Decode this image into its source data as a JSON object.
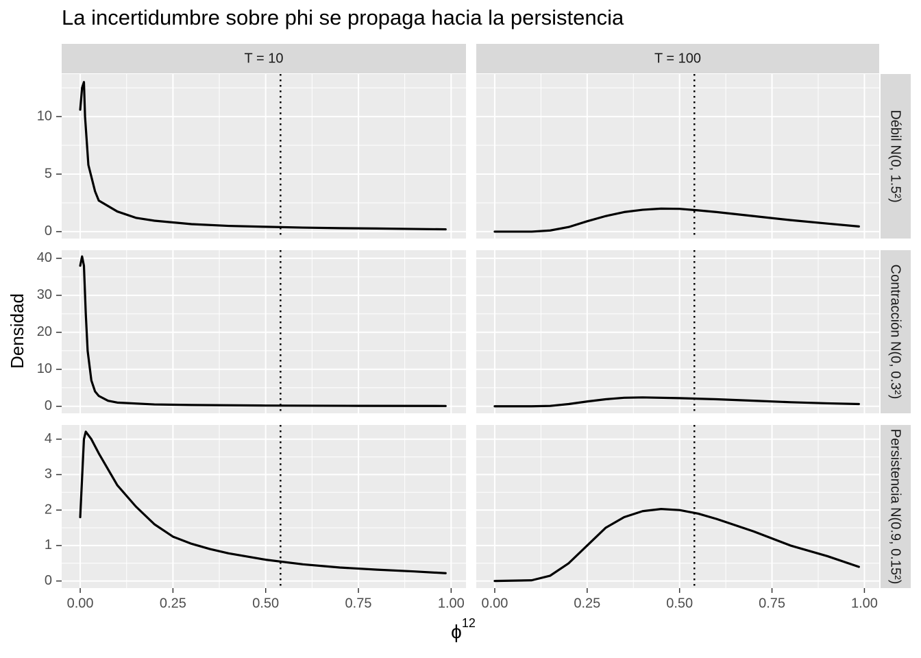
{
  "chart_data": {
    "type": "line",
    "title": "La incertidumbre sobre phi se propaga hacia la persistencia",
    "xlabel": {
      "base": "ϕ",
      "superscript": "12"
    },
    "ylabel": "Densidad",
    "color": "#000000",
    "grid": true,
    "reference_x": 0.54,
    "columns": [
      "T = 10",
      "T = 100"
    ],
    "xlim": [
      -0.05,
      1.04
    ],
    "xticks": [
      {
        "value": 0,
        "label": "0.00"
      },
      {
        "value": 0.25,
        "label": "0.25"
      },
      {
        "value": 0.5,
        "label": "0.50"
      },
      {
        "value": 0.75,
        "label": "0.75"
      },
      {
        "value": 1,
        "label": "1.00"
      }
    ],
    "xminor": [
      0.125,
      0.375,
      0.625,
      0.875
    ],
    "rows": [
      {
        "label": "Débil N(0, 1.5²)",
        "ylim": [
          -0.6,
          13.7
        ],
        "yticks": [
          0,
          5,
          10
        ],
        "yminor": [
          2.5,
          7.5,
          12.5
        ],
        "panels": [
          {
            "x": [
              0,
              0.005,
              0.01,
              0.013,
              0.022,
              0.04,
              0.05,
              0.1,
              0.15,
              0.2,
              0.25,
              0.3,
              0.4,
              0.5,
              0.6,
              0.7,
              0.8,
              0.9,
              0.985
            ],
            "values": [
              10.6,
              12.5,
              13,
              10,
              5.8,
              3.5,
              2.7,
              1.75,
              1.2,
              0.95,
              0.8,
              0.65,
              0.5,
              0.42,
              0.35,
              0.3,
              0.27,
              0.23,
              0.2
            ]
          },
          {
            "x": [
              0,
              0.1,
              0.15,
              0.2,
              0.25,
              0.3,
              0.35,
              0.4,
              0.45,
              0.5,
              0.55,
              0.6,
              0.7,
              0.8,
              0.9,
              0.985
            ],
            "values": [
              0,
              0,
              0.1,
              0.4,
              0.9,
              1.35,
              1.7,
              1.9,
              2.0,
              1.98,
              1.85,
              1.7,
              1.35,
              1.0,
              0.7,
              0.45
            ]
          }
        ]
      },
      {
        "label": "Contracción N(0, 0.3²)",
        "ylim": [
          -1.9,
          42.2
        ],
        "yticks": [
          0,
          10,
          20,
          30,
          40
        ],
        "yminor": [
          5,
          15,
          25,
          35
        ],
        "panels": [
          {
            "x": [
              0,
              0.005,
              0.01,
              0.015,
              0.02,
              0.03,
              0.04,
              0.05,
              0.075,
              0.1,
              0.2,
              0.3,
              0.5,
              0.75,
              0.985
            ],
            "values": [
              38,
              40.5,
              38,
              25,
              15,
              7,
              4,
              2.8,
              1.5,
              1,
              0.5,
              0.35,
              0.2,
              0.12,
              0.08
            ]
          },
          {
            "x": [
              0,
              0.1,
              0.15,
              0.2,
              0.25,
              0.3,
              0.35,
              0.4,
              0.5,
              0.6,
              0.7,
              0.8,
              0.9,
              0.985
            ],
            "values": [
              0,
              0,
              0.1,
              0.6,
              1.3,
              1.9,
              2.3,
              2.4,
              2.2,
              1.9,
              1.5,
              1.1,
              0.8,
              0.6
            ]
          }
        ]
      },
      {
        "label": "Persistencia N(0.9, 0.15²)",
        "ylim": [
          -0.2,
          4.4
        ],
        "yticks": [
          0,
          1,
          2,
          3,
          4
        ],
        "yminor": [
          0.5,
          1.5,
          2.5,
          3.5
        ],
        "panels": [
          {
            "x": [
              0,
              0.01,
              0.015,
              0.03,
              0.05,
              0.1,
              0.15,
              0.2,
              0.25,
              0.3,
              0.35,
              0.4,
              0.5,
              0.6,
              0.7,
              0.8,
              0.9,
              0.985
            ],
            "values": [
              1.8,
              4.0,
              4.21,
              4.0,
              3.6,
              2.7,
              2.1,
              1.6,
              1.25,
              1.05,
              0.9,
              0.78,
              0.6,
              0.47,
              0.38,
              0.32,
              0.27,
              0.22
            ]
          },
          {
            "x": [
              0,
              0.1,
              0.15,
              0.2,
              0.25,
              0.3,
              0.35,
              0.4,
              0.45,
              0.5,
              0.55,
              0.6,
              0.7,
              0.8,
              0.9,
              0.985
            ],
            "values": [
              0,
              0.02,
              0.15,
              0.5,
              1.0,
              1.5,
              1.8,
              1.97,
              2.03,
              2.0,
              1.9,
              1.75,
              1.4,
              1.0,
              0.7,
              0.4
            ]
          }
        ]
      }
    ]
  }
}
